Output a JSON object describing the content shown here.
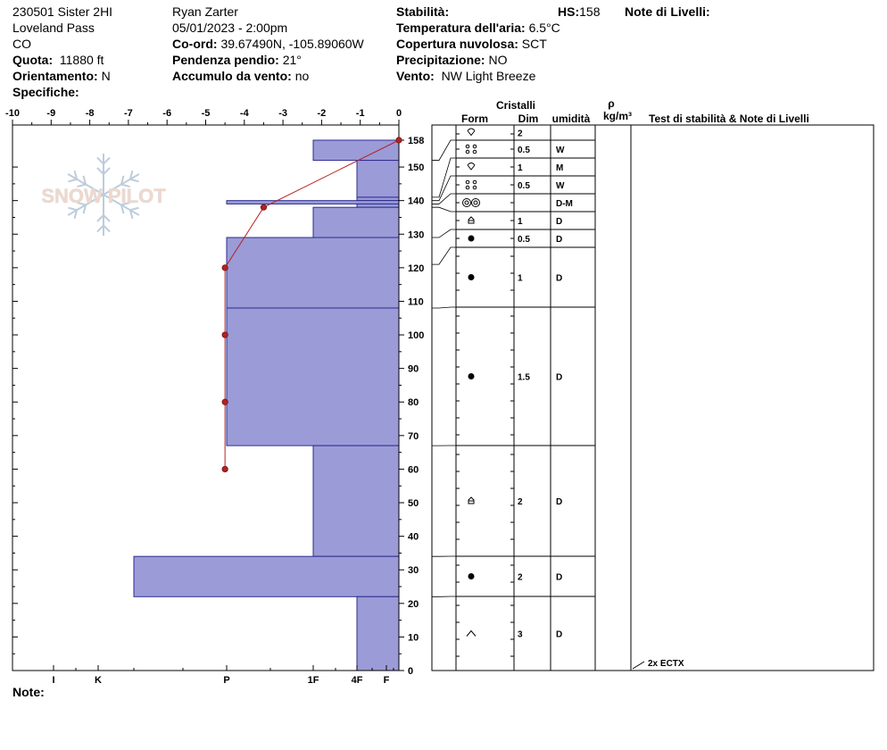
{
  "header": {
    "col1": [
      "230501 Sister 2HI",
      "Loveland Pass",
      "CO"
    ],
    "quota_label": "Quota:",
    "quota_value": "11880 ft",
    "orient_label": "Orientamento:",
    "orient_value": "N",
    "spec_label": "Specifiche:",
    "observer": "Ryan Zarter",
    "datetime": "05/01/2023 - 2:00pm",
    "coord_label": "Co-ord:",
    "coord_value": "39.67490N, -105.89060W",
    "slope_label": "Pendenza pendio:",
    "slope_value": "21°",
    "wind_load_label": "Accumulo da vento:",
    "wind_load_value": "no",
    "stab_label": "Stabilità:",
    "hs_label": "HS:",
    "hs_value": "158",
    "air_label": "Temperatura dell'aria:",
    "air_value": "6.5°C",
    "cloud_label": "Copertura nuvolosa:",
    "cloud_value": "SCT",
    "precip_label": "Precipitazione:",
    "precip_value": "NO",
    "wind_label": "Vento:",
    "wind_value": "NW Light Breeze",
    "notes_label": "Note di Livelli:",
    "footer_note": "Note:"
  },
  "logo_text": "SNOW PILOT",
  "colors": {
    "layer_fill": "#9b9bd8",
    "layer_stroke": "#2d2d8f",
    "temp_line": "#b22222",
    "temp_point": "#b22222"
  },
  "table": {
    "crystals_label": "Cristalli",
    "form_label": "Form",
    "dim_label": "Dim",
    "humidity_label": "umidità",
    "rho_label": "ρ",
    "density_unit": "kg/m³",
    "tests_label": "Test di stabilità & Note di Livelli",
    "rows": [
      {
        "top": 158,
        "bot": 152,
        "form": "decomposing",
        "dim": "2",
        "wet": ""
      },
      {
        "top": 152,
        "bot": 141,
        "form": "rounded-clusters",
        "dim": "0.5",
        "wet": "W"
      },
      {
        "top": 141,
        "bot": 140,
        "form": "decomposing",
        "dim": "1",
        "wet": "M"
      },
      {
        "top": 140,
        "bot": 139,
        "form": "rounded-clusters",
        "dim": "0.5",
        "wet": "W"
      },
      {
        "top": 139,
        "bot": 138,
        "form": "melt-forms",
        "dim": "",
        "wet": "D-M"
      },
      {
        "top": 138,
        "bot": 129,
        "form": "faceted",
        "dim": "1",
        "wet": "D"
      },
      {
        "top": 129,
        "bot": 121,
        "form": "rounded",
        "dim": "0.5",
        "wet": "D"
      },
      {
        "top": 121,
        "bot": 108,
        "form": "rounded",
        "dim": "1",
        "wet": "D"
      },
      {
        "top": 108,
        "bot": 67,
        "form": "rounded",
        "dim": "1.5",
        "wet": "D"
      },
      {
        "top": 67,
        "bot": 34,
        "form": "faceted",
        "dim": "2",
        "wet": "D"
      },
      {
        "top": 34,
        "bot": 22,
        "form": "rounded",
        "dim": "2",
        "wet": "D"
      },
      {
        "top": 22,
        "bot": 0,
        "form": "depth-hoar",
        "dim": "3",
        "wet": "D"
      }
    ],
    "test_note": "2x ECTX"
  },
  "chart_data": {
    "type": "snow-profile",
    "x_axis_top": {
      "label": "",
      "ticks": [
        -10,
        -9,
        -8,
        -7,
        -6,
        -5,
        -4,
        -3,
        -2,
        -1,
        0
      ],
      "range": [
        -10,
        0
      ]
    },
    "y_axis": {
      "label": "",
      "range": [
        0,
        158
      ],
      "ticks": [
        0,
        10,
        20,
        30,
        40,
        50,
        60,
        70,
        80,
        90,
        100,
        110,
        120,
        130,
        140,
        150,
        158
      ]
    },
    "hardness_scale": [
      {
        "label": "I",
        "value": 1
      },
      {
        "label": "K",
        "value": 2
      },
      {
        "label": "P",
        "value": 3
      },
      {
        "label": "1F",
        "value": 4
      },
      {
        "label": "4F",
        "value": 5
      },
      {
        "label": "F",
        "value": 6
      }
    ],
    "hardness_layers": [
      {
        "top": 158,
        "bot": 152,
        "hardness": "1F"
      },
      {
        "top": 152,
        "bot": 141,
        "hardness": "4F"
      },
      {
        "top": 141,
        "bot": 140,
        "hardness": "4F"
      },
      {
        "top": 140,
        "bot": 139,
        "hardness": "P"
      },
      {
        "top": 139,
        "bot": 138,
        "hardness": "4F"
      },
      {
        "top": 138,
        "bot": 129,
        "hardness": "1F"
      },
      {
        "top": 129,
        "bot": 108,
        "hardness": "P"
      },
      {
        "top": 108,
        "bot": 67,
        "hardness": "P"
      },
      {
        "top": 67,
        "bot": 34,
        "hardness": "1F"
      },
      {
        "top": 34,
        "bot": 22,
        "hardness": "K+"
      },
      {
        "top": 22,
        "bot": 0,
        "hardness": "4F"
      }
    ],
    "temperature_profile": [
      {
        "depth": 158,
        "temp": 0.0
      },
      {
        "depth": 138,
        "temp": -3.5
      },
      {
        "depth": 120,
        "temp": -4.5
      },
      {
        "depth": 100,
        "temp": -4.5
      },
      {
        "depth": 80,
        "temp": -4.5
      },
      {
        "depth": 60,
        "temp": -4.5
      }
    ]
  }
}
